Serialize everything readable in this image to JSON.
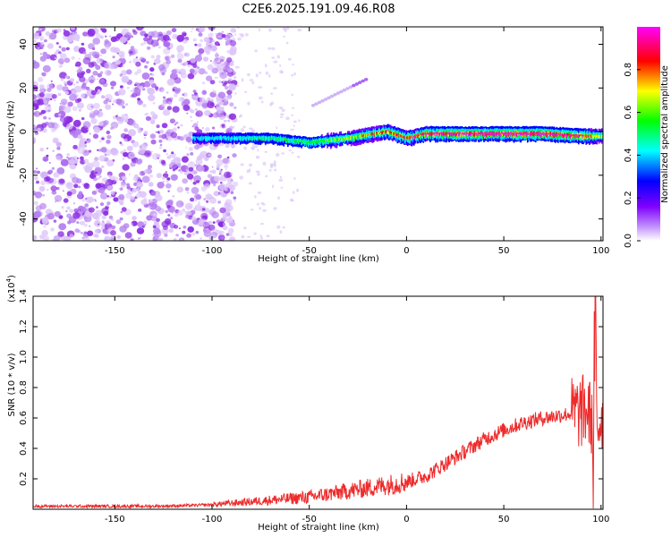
{
  "title": "C2E6.2025.191.09.46.R08",
  "chart_data": [
    {
      "type": "heatmap",
      "xlabel": "Height of straight line (km)",
      "ylabel": "Frequency (Hz)",
      "xlim": [
        -192,
        101
      ],
      "ylim": [
        -50,
        48
      ],
      "xticks": [
        -150,
        -100,
        -50,
        0,
        50,
        100
      ],
      "xtick_labels": [
        "-150",
        "-100",
        "-50",
        "0",
        "50",
        "100"
      ],
      "yticks": [
        -40,
        -20,
        0,
        20,
        40
      ],
      "ytick_labels": [
        "-40",
        "-20",
        "0",
        "20",
        "40"
      ],
      "ridge": {
        "x": [
          -110,
          -90,
          -70,
          -50,
          -30,
          -10,
          0,
          10,
          30,
          50,
          70,
          90,
          100
        ],
        "y": [
          -3,
          -3,
          -3,
          -5,
          -3,
          0,
          -3,
          -1,
          -1,
          -1,
          -1,
          -2,
          -2
        ],
        "amplitude": [
          0.25,
          0.3,
          0.35,
          0.4,
          0.5,
          0.7,
          0.7,
          0.8,
          0.9,
          0.95,
          0.95,
          0.8,
          0.5
        ]
      },
      "noise_region": {
        "x": [
          -192,
          -100
        ],
        "y": [
          -50,
          48
        ],
        "amplitude": 0.15
      },
      "colorbar": {
        "label": "Normalized spectral amplitude",
        "range": [
          0,
          1
        ],
        "ticks": [
          0.0,
          0.2,
          0.4,
          0.6,
          0.8
        ],
        "tick_labels": [
          "0.0",
          "0.2",
          "0.4",
          "0.6",
          "0.8"
        ],
        "colors": [
          "#ffffff",
          "#7f00ff",
          "#0000ff",
          "#00ffff",
          "#00ff00",
          "#ffff00",
          "#ff0000",
          "#ff00ff"
        ]
      },
      "grid": false
    },
    {
      "type": "line",
      "xlabel": "Height of straight line (km)",
      "ylabel": "SNR (10 * v/v)",
      "scale_label": "(x10",
      "scale_exp": "4",
      "scale_close": ")",
      "xlim": [
        -192,
        101
      ],
      "ylim": [
        0,
        1.4
      ],
      "xticks": [
        -150,
        -100,
        -50,
        0,
        50,
        100
      ],
      "xtick_labels": [
        "-150",
        "-100",
        "-50",
        "0",
        "50",
        "100"
      ],
      "yticks": [
        0.2,
        0.4,
        0.6,
        0.8,
        1.0,
        1.2,
        1.4
      ],
      "ytick_labels": [
        "0.2",
        "0.4",
        "0.6",
        "0.8",
        "1.0",
        "1.2",
        "1.4"
      ],
      "series": [
        {
          "color": "#ee2a2a",
          "x": [
            -192,
            -160,
            -130,
            -110,
            -100,
            -90,
            -80,
            -70,
            -60,
            -50,
            -40,
            -30,
            -20,
            -10,
            0,
            10,
            20,
            30,
            40,
            50,
            60,
            70,
            80,
            85,
            90,
            93,
            95,
            96,
            97,
            98,
            101
          ],
          "y": [
            0.02,
            0.02,
            0.02,
            0.025,
            0.03,
            0.04,
            0.05,
            0.06,
            0.07,
            0.08,
            0.1,
            0.12,
            0.14,
            0.16,
            0.18,
            0.22,
            0.3,
            0.38,
            0.46,
            0.52,
            0.57,
            0.6,
            0.62,
            0.63,
            0.64,
            0.65,
            0.6,
            0.3,
            1.4,
            0.55,
            0.63
          ]
        }
      ],
      "grid": false
    }
  ]
}
